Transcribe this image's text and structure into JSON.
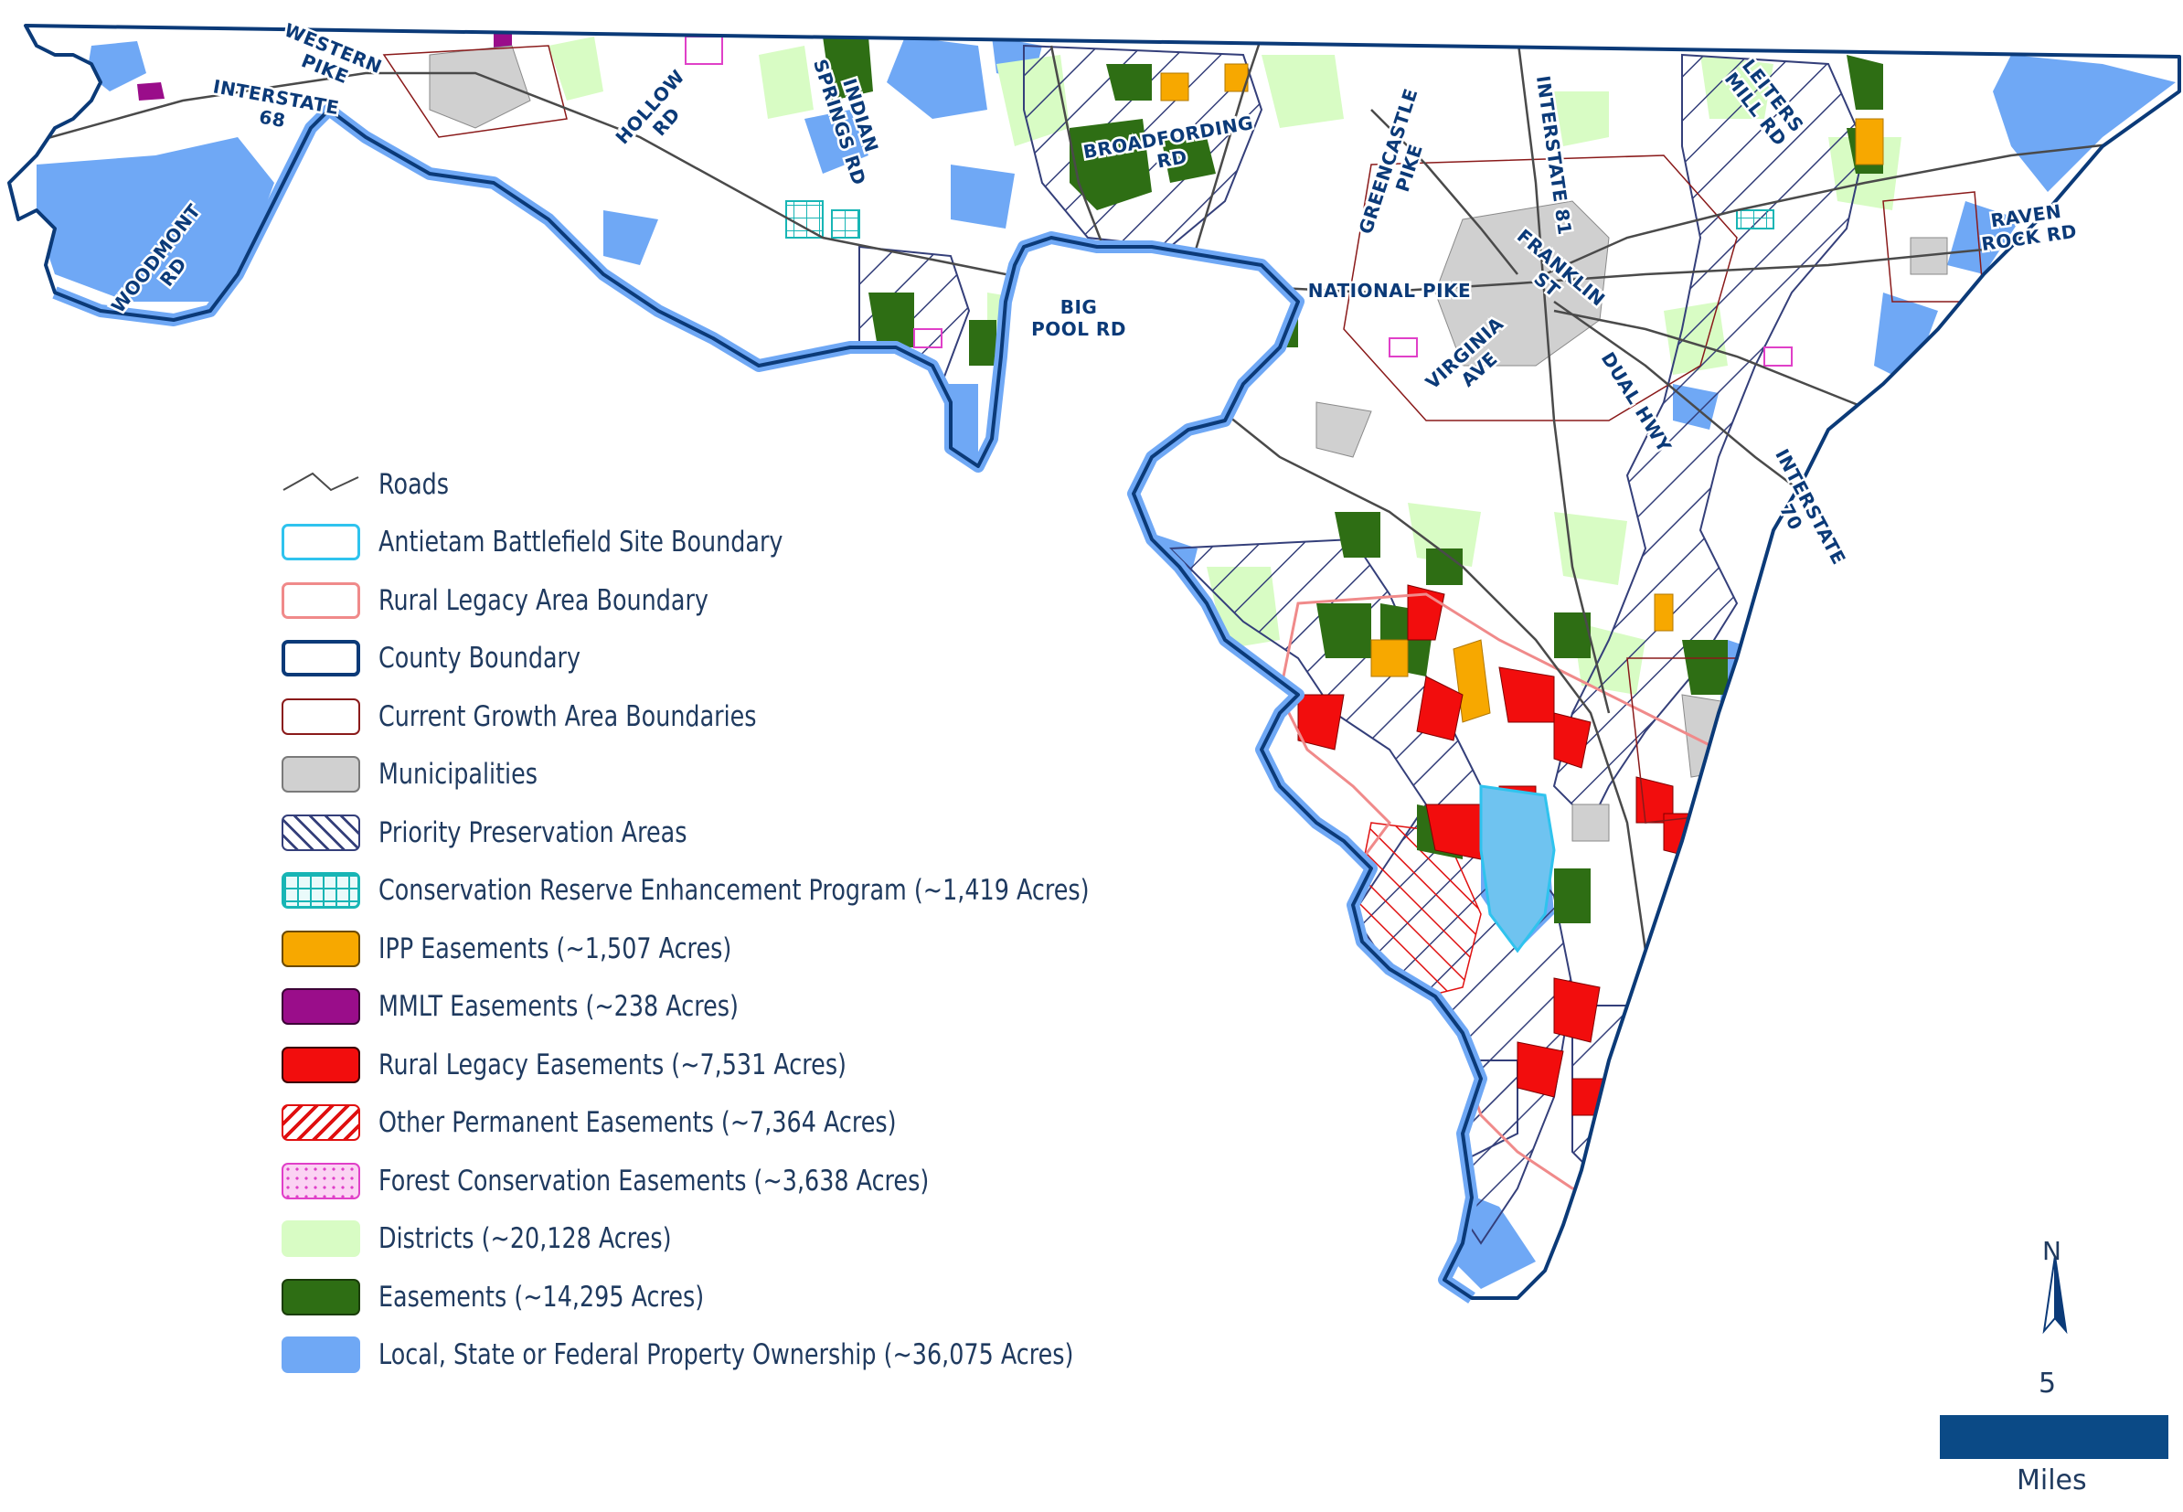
{
  "map": {
    "road_labels": [
      {
        "name": "woodmont-rd",
        "lines": [
          "WOODMONT",
          "RD"
        ]
      },
      {
        "name": "interstate-68",
        "lines": [
          "INTERSTATE",
          "68"
        ]
      },
      {
        "name": "western-pike",
        "lines": [
          "WESTERN",
          "PIKE"
        ]
      },
      {
        "name": "hollow-rd",
        "lines": [
          "HOLLOW",
          "RD"
        ]
      },
      {
        "name": "indian-springs-rd",
        "lines": [
          "INDIAN",
          "SPRINGS RD"
        ]
      },
      {
        "name": "broadfording-rd",
        "lines": [
          "BROADFORDING",
          "RD"
        ]
      },
      {
        "name": "big-pool-rd",
        "lines": [
          "BIG",
          "POOL RD"
        ]
      },
      {
        "name": "greencastle-pike",
        "lines": [
          "GREENCASTLE",
          "PIKE"
        ]
      },
      {
        "name": "national-pike",
        "lines": [
          "NATIONAL PIKE"
        ]
      },
      {
        "name": "interstate-81",
        "lines": [
          "INTERSTATE 81"
        ]
      },
      {
        "name": "franklin-st",
        "lines": [
          "FRANKLIN",
          "ST"
        ]
      },
      {
        "name": "virginia-ave",
        "lines": [
          "VIRGINIA",
          "AVE"
        ]
      },
      {
        "name": "dual-hwy",
        "lines": [
          "DUAL HWY"
        ]
      },
      {
        "name": "leiters-mill-rd",
        "lines": [
          "LEITERS",
          "MILL RD"
        ]
      },
      {
        "name": "raven-rock-rd",
        "lines": [
          "RAVEN",
          "ROCK RD"
        ]
      },
      {
        "name": "interstate-70",
        "lines": [
          "INTERSTATE",
          "70"
        ]
      }
    ],
    "colors": {
      "county": "#0b3a78",
      "public": "#6fa8f5",
      "districts": "#d8fcc4",
      "easements": "#2e6e14",
      "rural_legacy": "#f20d0d",
      "ipp": "#f7a800",
      "mmlt": "#9a0d8a",
      "municipal": "#d0d0d0",
      "crep": "#18b5b5",
      "forest": "#e040c8",
      "priority": "#343f7a",
      "growth": "#8a1a1a",
      "rural_legacy_boundary": "#f08a8a",
      "battlefield": "#2fc3ee",
      "roads": "#4a4a4a"
    }
  },
  "legend": {
    "items": [
      {
        "name": "roads",
        "label": "Roads",
        "swatch": "roads"
      },
      {
        "name": "antietam-battlefield",
        "label": "Antietam Battlefield Site Boundary",
        "swatch": "battlefield"
      },
      {
        "name": "rural-legacy-area",
        "label": "Rural Legacy Area Boundary",
        "swatch": "rural-legacy-boundary"
      },
      {
        "name": "county-boundary",
        "label": "County Boundary",
        "swatch": "county"
      },
      {
        "name": "growth-area",
        "label": "Current Growth Area Boundaries",
        "swatch": "growth"
      },
      {
        "name": "municipalities",
        "label": "Municipalities",
        "swatch": "municipal"
      },
      {
        "name": "priority-preservation",
        "label": "Priority Preservation Areas",
        "swatch": "priority"
      },
      {
        "name": "crep",
        "label": "Conservation Reserve Enhancement Program (~1,419 Acres)",
        "swatch": "crep"
      },
      {
        "name": "ipp-easements",
        "label": "IPP Easements (~1,507 Acres)",
        "swatch": "ipp"
      },
      {
        "name": "mmlt-easements",
        "label": "MMLT Easements (~238 Acres)",
        "swatch": "mmlt"
      },
      {
        "name": "rural-legacy-easements",
        "label": "Rural Legacy Easements (~7,531 Acres)",
        "swatch": "rural-legacy"
      },
      {
        "name": "other-permanent-easements",
        "label": "Other Permanent Easements (~7,364 Acres)",
        "swatch": "other-permanent"
      },
      {
        "name": "forest-conservation-easements",
        "label": "Forest Conservation Easements (~3,638 Acres)",
        "swatch": "forest"
      },
      {
        "name": "districts",
        "label": "Districts (~20,128 Acres)",
        "swatch": "districts"
      },
      {
        "name": "easements",
        "label": "Easements (~14,295 Acres)",
        "swatch": "easements"
      },
      {
        "name": "public-ownership",
        "label": "Local, State or Federal Property Ownership (~36,075 Acres)",
        "swatch": "public"
      }
    ]
  },
  "north_arrow": {
    "label": "N"
  },
  "scale": {
    "value": "5",
    "unit": "Miles"
  }
}
